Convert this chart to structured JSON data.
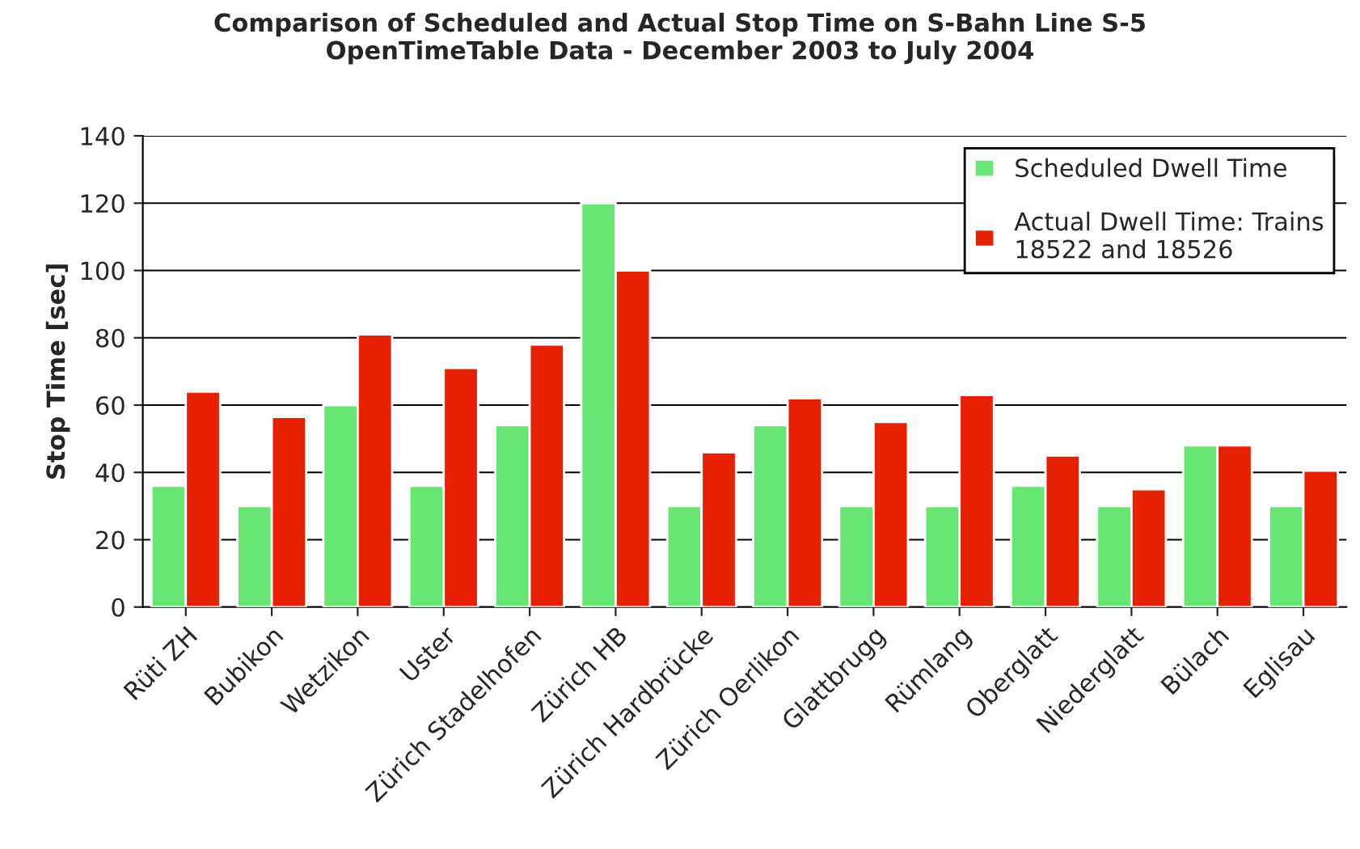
{
  "chart_data": {
    "type": "bar",
    "title": "Comparison of Scheduled and Actual Stop Time on S-Bahn Line S-5\nOpenTimeTable Data - December 2003 to July 2004",
    "ylabel": "Stop Time [sec]",
    "categories": [
      "Rüti ZH",
      "Bubikon",
      "Wetzikon",
      "Uster",
      "Zürich Stadelhofen",
      "Zürich HB",
      "Zürich Hardbrücke",
      "Zürich Oerlikon",
      "Glattbrugg",
      "Rümlang",
      "Oberglatt",
      "Niederglatt",
      "Bülach",
      "Eglisau"
    ],
    "series": [
      {
        "name": "Scheduled Dwell Time",
        "color": "#66e673",
        "values": [
          36,
          30,
          60,
          36,
          54,
          120,
          30,
          54,
          30,
          30,
          36,
          30,
          48,
          30
        ]
      },
      {
        "name": "Actual Dwell Time: Trains\n18522 and 18526",
        "color": "#e62000",
        "values": [
          64,
          56.5,
          81,
          71,
          78,
          100,
          46,
          62,
          55,
          63,
          45,
          35,
          48,
          40.5
        ]
      }
    ],
    "ylim": [
      0,
      140
    ],
    "yticks": [
      0,
      20,
      40,
      60,
      80,
      100,
      120,
      140
    ],
    "grid": "y",
    "legend": "top right"
  }
}
